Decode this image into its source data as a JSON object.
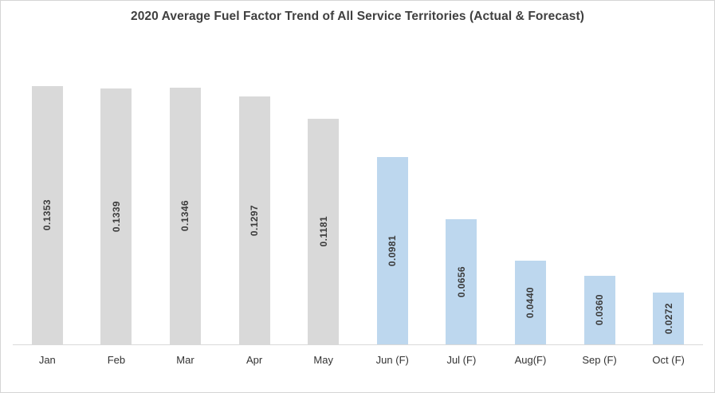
{
  "chart_data": {
    "type": "bar",
    "title": "2020 Average Fuel Factor Trend of All Service Territories (Actual & Forecast)",
    "categories": [
      "Jan",
      "Feb",
      "Mar",
      "Apr",
      "May",
      "Jun (F)",
      "Jul (F)",
      "Aug(F)",
      "Sep (F)",
      "Oct (F)"
    ],
    "values": [
      0.1353,
      0.1339,
      0.1346,
      0.1297,
      0.1181,
      0.0981,
      0.0656,
      0.044,
      0.036,
      0.0272
    ],
    "value_labels": [
      "0.1353",
      "0.1339",
      "0.1346",
      "0.1297",
      "0.1181",
      "0.0981",
      "0.0656",
      "0.0440",
      "0.0360",
      "0.0272"
    ],
    "bar_groups": [
      "actual",
      "actual",
      "actual",
      "actual",
      "actual",
      "forecast",
      "forecast",
      "forecast",
      "forecast",
      "forecast"
    ],
    "colors": {
      "actual": "#d9d9d9",
      "forecast": "#bdd7ee",
      "title_text": "#404040",
      "value_label_text": "#3b3b3b",
      "axis_label_text": "#333333",
      "axis_line": "#d9d9d9",
      "background": "#ffffff",
      "frame_border": "#d5d5d5"
    },
    "xlabel": "",
    "ylabel": "",
    "ylim": [
      0,
      0.1353
    ],
    "grid": false,
    "legend": false,
    "value_label_position": "center-inside",
    "value_label_rotation": "vertical-bottom-to-top"
  }
}
